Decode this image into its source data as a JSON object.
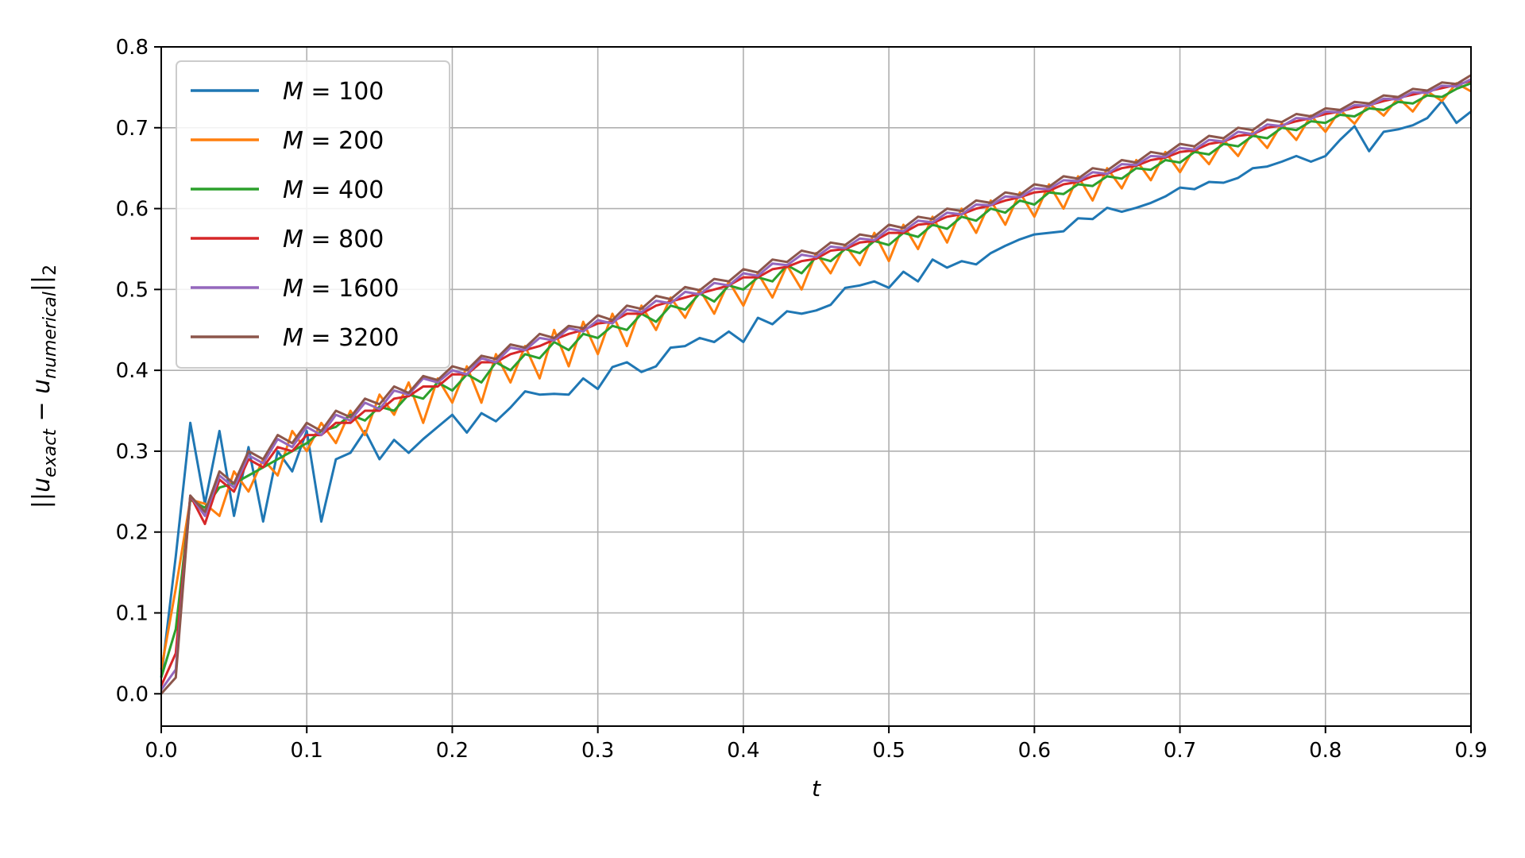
{
  "chart_data": {
    "type": "line",
    "title": "",
    "xlabel": "t",
    "ylabel": "||u_exact − u_numerical||_2",
    "xlim": [
      0.0,
      0.9
    ],
    "ylim": [
      -0.04,
      0.8
    ],
    "x_ticks": [
      "0.0",
      "0.1",
      "0.2",
      "0.3",
      "0.4",
      "0.5",
      "0.6",
      "0.7",
      "0.8",
      "0.9"
    ],
    "y_ticks": [
      "0.0",
      "0.1",
      "0.2",
      "0.3",
      "0.4",
      "0.5",
      "0.6",
      "0.7",
      "0.8"
    ],
    "grid": true,
    "legend_position": "upper-left",
    "series": [
      {
        "name": "M = 100",
        "label_var": "M",
        "label_val": "100",
        "color": "#1f77b4",
        "x": [
          0.0,
          0.01,
          0.02,
          0.03,
          0.04,
          0.05,
          0.06,
          0.07,
          0.08,
          0.09,
          0.1,
          0.11,
          0.12,
          0.13,
          0.14,
          0.15,
          0.16,
          0.17,
          0.18,
          0.19,
          0.2,
          0.21,
          0.22,
          0.23,
          0.24,
          0.25,
          0.26,
          0.27,
          0.28,
          0.29,
          0.3,
          0.31,
          0.32,
          0.33,
          0.34,
          0.35,
          0.36,
          0.37,
          0.38,
          0.39,
          0.4,
          0.41,
          0.42,
          0.43,
          0.44,
          0.45,
          0.46,
          0.47,
          0.48,
          0.49,
          0.5,
          0.51,
          0.52,
          0.53,
          0.54,
          0.55,
          0.56,
          0.57,
          0.58,
          0.59,
          0.6,
          0.61,
          0.62,
          0.63,
          0.64,
          0.65,
          0.66,
          0.67,
          0.68,
          0.69,
          0.7,
          0.71,
          0.72,
          0.73,
          0.74,
          0.75,
          0.76,
          0.77,
          0.78,
          0.79,
          0.8,
          0.81,
          0.82,
          0.83,
          0.84,
          0.85,
          0.86,
          0.87,
          0.88,
          0.89,
          0.9
        ],
        "y": [
          0.02,
          0.17,
          0.335,
          0.235,
          0.325,
          0.22,
          0.305,
          0.213,
          0.3,
          0.275,
          0.325,
          0.213,
          0.29,
          0.298,
          0.325,
          0.29,
          0.314,
          0.298,
          0.315,
          0.33,
          0.345,
          0.323,
          0.347,
          0.337,
          0.354,
          0.374,
          0.37,
          0.371,
          0.37,
          0.39,
          0.377,
          0.404,
          0.41,
          0.398,
          0.405,
          0.428,
          0.43,
          0.44,
          0.435,
          0.448,
          0.435,
          0.465,
          0.457,
          0.473,
          0.47,
          0.474,
          0.481,
          0.502,
          0.505,
          0.51,
          0.502,
          0.522,
          0.51,
          0.537,
          0.527,
          0.535,
          0.531,
          0.545,
          0.554,
          0.562,
          0.568,
          0.57,
          0.572,
          0.588,
          0.587,
          0.601,
          0.596,
          0.601,
          0.607,
          0.615,
          0.626,
          0.624,
          0.633,
          0.632,
          0.638,
          0.65,
          0.652,
          0.658,
          0.665,
          0.658,
          0.665,
          0.685,
          0.702,
          0.671,
          0.695,
          0.698,
          0.703,
          0.712,
          0.733,
          0.706,
          0.72
        ]
      },
      {
        "name": "M = 200",
        "label_var": "M",
        "label_val": "200",
        "color": "#ff7f0e",
        "x": [
          0.0,
          0.01,
          0.02,
          0.03,
          0.04,
          0.05,
          0.06,
          0.07,
          0.08,
          0.09,
          0.1,
          0.11,
          0.12,
          0.13,
          0.14,
          0.15,
          0.16,
          0.17,
          0.18,
          0.19,
          0.2,
          0.21,
          0.22,
          0.23,
          0.24,
          0.25,
          0.26,
          0.27,
          0.28,
          0.29,
          0.3,
          0.31,
          0.32,
          0.33,
          0.34,
          0.35,
          0.36,
          0.37,
          0.38,
          0.39,
          0.4,
          0.41,
          0.42,
          0.43,
          0.44,
          0.45,
          0.46,
          0.47,
          0.48,
          0.49,
          0.5,
          0.51,
          0.52,
          0.53,
          0.54,
          0.55,
          0.56,
          0.57,
          0.58,
          0.59,
          0.6,
          0.61,
          0.62,
          0.63,
          0.64,
          0.65,
          0.66,
          0.67,
          0.68,
          0.69,
          0.7,
          0.71,
          0.72,
          0.73,
          0.74,
          0.75,
          0.76,
          0.77,
          0.78,
          0.79,
          0.8,
          0.81,
          0.82,
          0.83,
          0.84,
          0.85,
          0.86,
          0.87,
          0.88,
          0.89,
          0.9
        ],
        "y": [
          0.03,
          0.13,
          0.24,
          0.235,
          0.22,
          0.275,
          0.25,
          0.29,
          0.27,
          0.325,
          0.3,
          0.335,
          0.31,
          0.35,
          0.32,
          0.37,
          0.345,
          0.385,
          0.335,
          0.39,
          0.36,
          0.405,
          0.36,
          0.42,
          0.385,
          0.43,
          0.39,
          0.45,
          0.405,
          0.46,
          0.42,
          0.47,
          0.43,
          0.48,
          0.45,
          0.49,
          0.465,
          0.5,
          0.47,
          0.51,
          0.48,
          0.52,
          0.49,
          0.53,
          0.5,
          0.545,
          0.52,
          0.555,
          0.53,
          0.57,
          0.535,
          0.58,
          0.55,
          0.59,
          0.558,
          0.6,
          0.57,
          0.61,
          0.58,
          0.62,
          0.59,
          0.63,
          0.6,
          0.64,
          0.61,
          0.65,
          0.625,
          0.66,
          0.635,
          0.67,
          0.645,
          0.675,
          0.655,
          0.685,
          0.665,
          0.695,
          0.675,
          0.705,
          0.685,
          0.715,
          0.695,
          0.722,
          0.705,
          0.73,
          0.715,
          0.737,
          0.72,
          0.745,
          0.733,
          0.755,
          0.745
        ]
      },
      {
        "name": "M = 400",
        "label_var": "M",
        "label_val": "400",
        "color": "#2ca02c",
        "x": [
          0.0,
          0.01,
          0.02,
          0.03,
          0.04,
          0.05,
          0.06,
          0.07,
          0.08,
          0.09,
          0.1,
          0.11,
          0.12,
          0.13,
          0.14,
          0.15,
          0.16,
          0.17,
          0.18,
          0.19,
          0.2,
          0.21,
          0.22,
          0.23,
          0.24,
          0.25,
          0.26,
          0.27,
          0.28,
          0.29,
          0.3,
          0.31,
          0.32,
          0.33,
          0.34,
          0.35,
          0.36,
          0.37,
          0.38,
          0.39,
          0.4,
          0.41,
          0.42,
          0.43,
          0.44,
          0.45,
          0.46,
          0.47,
          0.48,
          0.49,
          0.5,
          0.51,
          0.52,
          0.53,
          0.54,
          0.55,
          0.56,
          0.57,
          0.58,
          0.59,
          0.6,
          0.61,
          0.62,
          0.63,
          0.64,
          0.65,
          0.66,
          0.67,
          0.68,
          0.69,
          0.7,
          0.71,
          0.72,
          0.73,
          0.74,
          0.75,
          0.76,
          0.77,
          0.78,
          0.79,
          0.8,
          0.81,
          0.82,
          0.83,
          0.84,
          0.85,
          0.86,
          0.87,
          0.88,
          0.89,
          0.9
        ],
        "y": [
          0.02,
          0.08,
          0.24,
          0.23,
          0.255,
          0.26,
          0.27,
          0.28,
          0.29,
          0.3,
          0.31,
          0.325,
          0.33,
          0.345,
          0.338,
          0.355,
          0.35,
          0.37,
          0.365,
          0.385,
          0.375,
          0.395,
          0.385,
          0.41,
          0.4,
          0.42,
          0.415,
          0.435,
          0.425,
          0.445,
          0.44,
          0.455,
          0.45,
          0.47,
          0.46,
          0.48,
          0.475,
          0.495,
          0.485,
          0.505,
          0.5,
          0.515,
          0.51,
          0.53,
          0.52,
          0.54,
          0.535,
          0.55,
          0.545,
          0.56,
          0.555,
          0.57,
          0.565,
          0.58,
          0.575,
          0.59,
          0.585,
          0.6,
          0.595,
          0.61,
          0.605,
          0.62,
          0.618,
          0.63,
          0.628,
          0.64,
          0.637,
          0.65,
          0.648,
          0.66,
          0.657,
          0.67,
          0.667,
          0.68,
          0.677,
          0.69,
          0.687,
          0.7,
          0.697,
          0.708,
          0.706,
          0.716,
          0.714,
          0.724,
          0.722,
          0.732,
          0.73,
          0.74,
          0.738,
          0.748,
          0.755
        ]
      },
      {
        "name": "M = 800",
        "label_var": "M",
        "label_val": "800",
        "color": "#d62728",
        "x": [
          0.0,
          0.01,
          0.02,
          0.03,
          0.04,
          0.05,
          0.06,
          0.07,
          0.08,
          0.09,
          0.1,
          0.11,
          0.12,
          0.13,
          0.14,
          0.15,
          0.16,
          0.17,
          0.18,
          0.19,
          0.2,
          0.21,
          0.22,
          0.23,
          0.24,
          0.25,
          0.26,
          0.27,
          0.28,
          0.29,
          0.3,
          0.31,
          0.32,
          0.33,
          0.34,
          0.35,
          0.36,
          0.37,
          0.38,
          0.39,
          0.4,
          0.41,
          0.42,
          0.43,
          0.44,
          0.45,
          0.46,
          0.47,
          0.48,
          0.49,
          0.5,
          0.51,
          0.52,
          0.53,
          0.54,
          0.55,
          0.56,
          0.57,
          0.58,
          0.59,
          0.6,
          0.61,
          0.62,
          0.63,
          0.64,
          0.65,
          0.66,
          0.67,
          0.68,
          0.69,
          0.7,
          0.71,
          0.72,
          0.73,
          0.74,
          0.75,
          0.76,
          0.77,
          0.78,
          0.79,
          0.8,
          0.81,
          0.82,
          0.83,
          0.84,
          0.85,
          0.86,
          0.87,
          0.88,
          0.89,
          0.9
        ],
        "y": [
          0.01,
          0.05,
          0.245,
          0.21,
          0.265,
          0.25,
          0.29,
          0.28,
          0.305,
          0.3,
          0.32,
          0.32,
          0.335,
          0.335,
          0.35,
          0.35,
          0.365,
          0.368,
          0.38,
          0.38,
          0.395,
          0.395,
          0.41,
          0.41,
          0.42,
          0.425,
          0.43,
          0.438,
          0.445,
          0.45,
          0.458,
          0.46,
          0.47,
          0.47,
          0.48,
          0.485,
          0.49,
          0.495,
          0.5,
          0.505,
          0.515,
          0.515,
          0.525,
          0.528,
          0.535,
          0.538,
          0.548,
          0.55,
          0.558,
          0.56,
          0.57,
          0.57,
          0.58,
          0.582,
          0.59,
          0.593,
          0.6,
          0.604,
          0.61,
          0.614,
          0.62,
          0.622,
          0.63,
          0.633,
          0.64,
          0.643,
          0.65,
          0.653,
          0.66,
          0.663,
          0.67,
          0.672,
          0.68,
          0.683,
          0.69,
          0.692,
          0.7,
          0.703,
          0.708,
          0.712,
          0.717,
          0.72,
          0.725,
          0.728,
          0.733,
          0.737,
          0.741,
          0.745,
          0.749,
          0.753,
          0.758
        ]
      },
      {
        "name": "M = 1600",
        "label_var": "M",
        "label_val": "1600",
        "color": "#9467bd",
        "x": [
          0.0,
          0.01,
          0.02,
          0.03,
          0.04,
          0.05,
          0.06,
          0.07,
          0.08,
          0.09,
          0.1,
          0.11,
          0.12,
          0.13,
          0.14,
          0.15,
          0.16,
          0.17,
          0.18,
          0.19,
          0.2,
          0.21,
          0.22,
          0.23,
          0.24,
          0.25,
          0.26,
          0.27,
          0.28,
          0.29,
          0.3,
          0.31,
          0.32,
          0.33,
          0.34,
          0.35,
          0.36,
          0.37,
          0.38,
          0.39,
          0.4,
          0.41,
          0.42,
          0.43,
          0.44,
          0.45,
          0.46,
          0.47,
          0.48,
          0.49,
          0.5,
          0.51,
          0.52,
          0.53,
          0.54,
          0.55,
          0.56,
          0.57,
          0.58,
          0.59,
          0.6,
          0.61,
          0.62,
          0.63,
          0.64,
          0.65,
          0.66,
          0.67,
          0.68,
          0.69,
          0.7,
          0.71,
          0.72,
          0.73,
          0.74,
          0.75,
          0.76,
          0.77,
          0.78,
          0.79,
          0.8,
          0.81,
          0.82,
          0.83,
          0.84,
          0.85,
          0.86,
          0.87,
          0.88,
          0.89,
          0.9
        ],
        "y": [
          0.005,
          0.03,
          0.245,
          0.22,
          0.27,
          0.255,
          0.295,
          0.285,
          0.315,
          0.305,
          0.33,
          0.32,
          0.345,
          0.338,
          0.36,
          0.352,
          0.375,
          0.37,
          0.39,
          0.385,
          0.4,
          0.395,
          0.415,
          0.41,
          0.428,
          0.425,
          0.44,
          0.437,
          0.452,
          0.448,
          0.462,
          0.458,
          0.475,
          0.472,
          0.486,
          0.483,
          0.497,
          0.494,
          0.508,
          0.505,
          0.52,
          0.517,
          0.532,
          0.53,
          0.543,
          0.54,
          0.553,
          0.551,
          0.563,
          0.561,
          0.575,
          0.572,
          0.585,
          0.583,
          0.595,
          0.593,
          0.605,
          0.604,
          0.615,
          0.614,
          0.625,
          0.624,
          0.635,
          0.634,
          0.645,
          0.643,
          0.655,
          0.654,
          0.665,
          0.664,
          0.675,
          0.673,
          0.685,
          0.683,
          0.695,
          0.692,
          0.704,
          0.702,
          0.712,
          0.711,
          0.72,
          0.719,
          0.728,
          0.727,
          0.736,
          0.735,
          0.744,
          0.743,
          0.752,
          0.751,
          0.76
        ]
      },
      {
        "name": "M = 3200",
        "label_var": "M",
        "label_val": "3200",
        "color": "#8c564b",
        "x": [
          0.0,
          0.01,
          0.02,
          0.03,
          0.04,
          0.05,
          0.06,
          0.07,
          0.08,
          0.09,
          0.1,
          0.11,
          0.12,
          0.13,
          0.14,
          0.15,
          0.16,
          0.17,
          0.18,
          0.19,
          0.2,
          0.21,
          0.22,
          0.23,
          0.24,
          0.25,
          0.26,
          0.27,
          0.28,
          0.29,
          0.3,
          0.31,
          0.32,
          0.33,
          0.34,
          0.35,
          0.36,
          0.37,
          0.38,
          0.39,
          0.4,
          0.41,
          0.42,
          0.43,
          0.44,
          0.45,
          0.46,
          0.47,
          0.48,
          0.49,
          0.5,
          0.51,
          0.52,
          0.53,
          0.54,
          0.55,
          0.56,
          0.57,
          0.58,
          0.59,
          0.6,
          0.61,
          0.62,
          0.63,
          0.64,
          0.65,
          0.66,
          0.67,
          0.68,
          0.69,
          0.7,
          0.71,
          0.72,
          0.73,
          0.74,
          0.75,
          0.76,
          0.77,
          0.78,
          0.79,
          0.8,
          0.81,
          0.82,
          0.83,
          0.84,
          0.85,
          0.86,
          0.87,
          0.88,
          0.89,
          0.9
        ],
        "y": [
          0.0,
          0.02,
          0.245,
          0.225,
          0.275,
          0.26,
          0.3,
          0.29,
          0.32,
          0.31,
          0.335,
          0.325,
          0.35,
          0.342,
          0.365,
          0.358,
          0.38,
          0.372,
          0.393,
          0.388,
          0.405,
          0.4,
          0.418,
          0.414,
          0.432,
          0.428,
          0.445,
          0.44,
          0.455,
          0.452,
          0.468,
          0.462,
          0.48,
          0.476,
          0.492,
          0.488,
          0.503,
          0.499,
          0.513,
          0.51,
          0.525,
          0.521,
          0.537,
          0.534,
          0.548,
          0.544,
          0.558,
          0.555,
          0.568,
          0.565,
          0.58,
          0.576,
          0.59,
          0.587,
          0.6,
          0.597,
          0.61,
          0.607,
          0.62,
          0.617,
          0.63,
          0.627,
          0.64,
          0.637,
          0.65,
          0.647,
          0.66,
          0.657,
          0.67,
          0.667,
          0.68,
          0.677,
          0.69,
          0.687,
          0.7,
          0.697,
          0.71,
          0.707,
          0.717,
          0.714,
          0.724,
          0.722,
          0.732,
          0.73,
          0.74,
          0.738,
          0.748,
          0.746,
          0.756,
          0.754,
          0.765
        ]
      }
    ]
  }
}
